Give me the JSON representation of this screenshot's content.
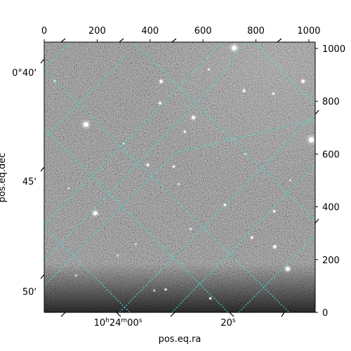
{
  "chart_data": {
    "type": "image",
    "title": "",
    "image_description_colormap": "grayscale",
    "pixel_axes": {
      "x_range": [
        0,
        1024
      ],
      "y_range": [
        0,
        1024
      ],
      "bottom_x_ticks_hidden": true,
      "top_x_ticks": [
        0,
        200,
        400,
        600,
        800,
        1000
      ],
      "right_y_ticks": [
        0,
        200,
        400,
        600,
        800,
        1000
      ]
    },
    "world_axes": {
      "xlabel": "pos.eq.ra",
      "ylabel": "pos.eq.dec",
      "ra_tick_labels": [
        {
          "text_main": "10",
          "sup1": "h",
          "text_mid": "24",
          "sup2": "m",
          "text_tail": "00",
          "sup3": "s"
        },
        {
          "text_main": "20",
          "sup1": "s",
          "text_mid": "",
          "sup2": "",
          "text_tail": "",
          "sup3": ""
        }
      ],
      "dec_tick_labels": [
        "0°40'",
        "45'",
        "50'"
      ]
    },
    "grid": {
      "on": true,
      "color": "#40e0d0",
      "style": "dashed"
    },
    "stars": [
      {
        "x": 718,
        "y": 1002,
        "r": 3.5
      },
      {
        "x": 442,
        "y": 875,
        "r": 2.2
      },
      {
        "x": 438,
        "y": 793,
        "r": 1.6
      },
      {
        "x": 158,
        "y": 712,
        "r": 3.6
      },
      {
        "x": 564,
        "y": 738,
        "r": 2.4
      },
      {
        "x": 40,
        "y": 876,
        "r": 1.3
      },
      {
        "x": 755,
        "y": 840,
        "r": 1.7
      },
      {
        "x": 866,
        "y": 829,
        "r": 1.4
      },
      {
        "x": 978,
        "y": 876,
        "r": 2.2
      },
      {
        "x": 1010,
        "y": 654,
        "r": 3.9
      },
      {
        "x": 531,
        "y": 685,
        "r": 1.4
      },
      {
        "x": 391,
        "y": 559,
        "r": 1.7
      },
      {
        "x": 489,
        "y": 553,
        "r": 1.4
      },
      {
        "x": 508,
        "y": 486,
        "r": 1.1
      },
      {
        "x": 683,
        "y": 407,
        "r": 1.6
      },
      {
        "x": 193,
        "y": 376,
        "r": 2.9
      },
      {
        "x": 869,
        "y": 383,
        "r": 1.5
      },
      {
        "x": 785,
        "y": 284,
        "r": 1.6
      },
      {
        "x": 871,
        "y": 249,
        "r": 2.1
      },
      {
        "x": 920,
        "y": 165,
        "r": 2.9
      },
      {
        "x": 553,
        "y": 316,
        "r": 1.2
      },
      {
        "x": 628,
        "y": 53,
        "r": 1.4
      },
      {
        "x": 459,
        "y": 87,
        "r": 1.3
      },
      {
        "x": 416,
        "y": 83,
        "r": 1.1
      },
      {
        "x": 278,
        "y": 215,
        "r": 1.1
      },
      {
        "x": 300,
        "y": 640,
        "r": 1.0
      },
      {
        "x": 622,
        "y": 920,
        "r": 1.2
      },
      {
        "x": 92,
        "y": 470,
        "r": 1.0
      },
      {
        "x": 760,
        "y": 600,
        "r": 1.0
      },
      {
        "x": 346,
        "y": 258,
        "r": 1.0
      },
      {
        "x": 930,
        "y": 500,
        "r": 1.0
      },
      {
        "x": 120,
        "y": 140,
        "r": 1.0
      }
    ]
  }
}
